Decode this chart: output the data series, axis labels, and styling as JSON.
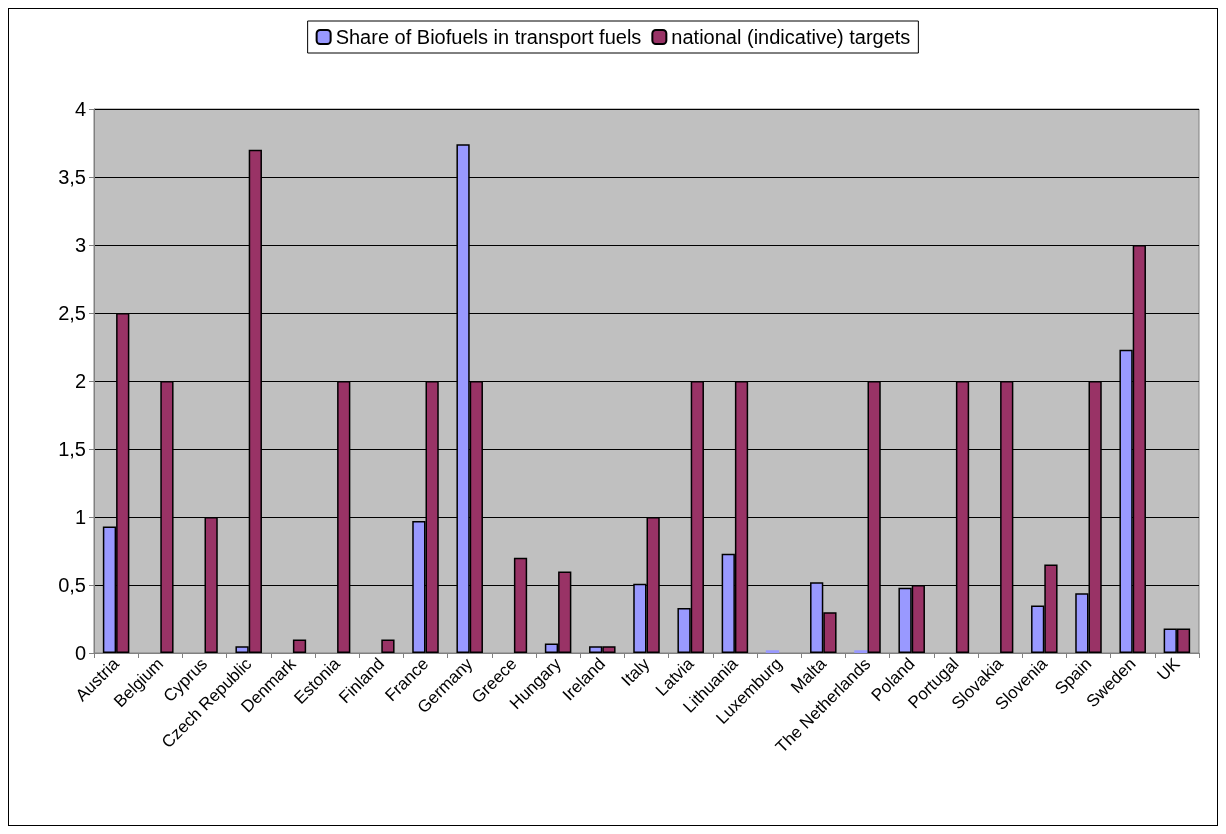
{
  "chart_data": {
    "type": "bar",
    "categories": [
      "Austria",
      "Belgium",
      "Cyprus",
      "Czech Republic",
      "Denmark",
      "Estonia",
      "Finland",
      "France",
      "Germany",
      "Greece",
      "Hungary",
      "Ireland",
      "Italy",
      "Latvia",
      "Lithuania",
      "Luxemburg",
      "Malta",
      "The Netherlands",
      "Poland",
      "Portugal",
      "Slovakia",
      "Slovenia",
      "Spain",
      "Sweden",
      "UK"
    ],
    "series": [
      {
        "name": "Share of Biofuels in transport fuels",
        "color": "#9999ff",
        "values": [
          0.93,
          null,
          null,
          0.05,
          null,
          null,
          null,
          0.97,
          3.74,
          null,
          0.07,
          0.05,
          0.51,
          0.33,
          0.73,
          0.02,
          0.52,
          0.02,
          0.48,
          null,
          null,
          0.35,
          0.44,
          2.23,
          0.18
        ]
      },
      {
        "name": "national (indicative) targets",
        "color": "#993366",
        "values": [
          2.5,
          2,
          1,
          3.7,
          0.1,
          2,
          0.1,
          2,
          2,
          0.7,
          0.6,
          0.05,
          1,
          2,
          2,
          null,
          0.3,
          2,
          0.5,
          2,
          2,
          0.65,
          2,
          3,
          0.18
        ]
      }
    ],
    "ylim": [
      0,
      4
    ],
    "yticks": [
      0,
      {
        "value": 0.5,
        "label": "0,5"
      },
      1,
      {
        "value": 1.5,
        "label": "1,5"
      },
      2,
      {
        "value": 2.5,
        "label": "2,5"
      },
      3,
      {
        "value": 3.5,
        "label": "3,5"
      },
      4
    ],
    "grid": "y",
    "legend": "top"
  }
}
